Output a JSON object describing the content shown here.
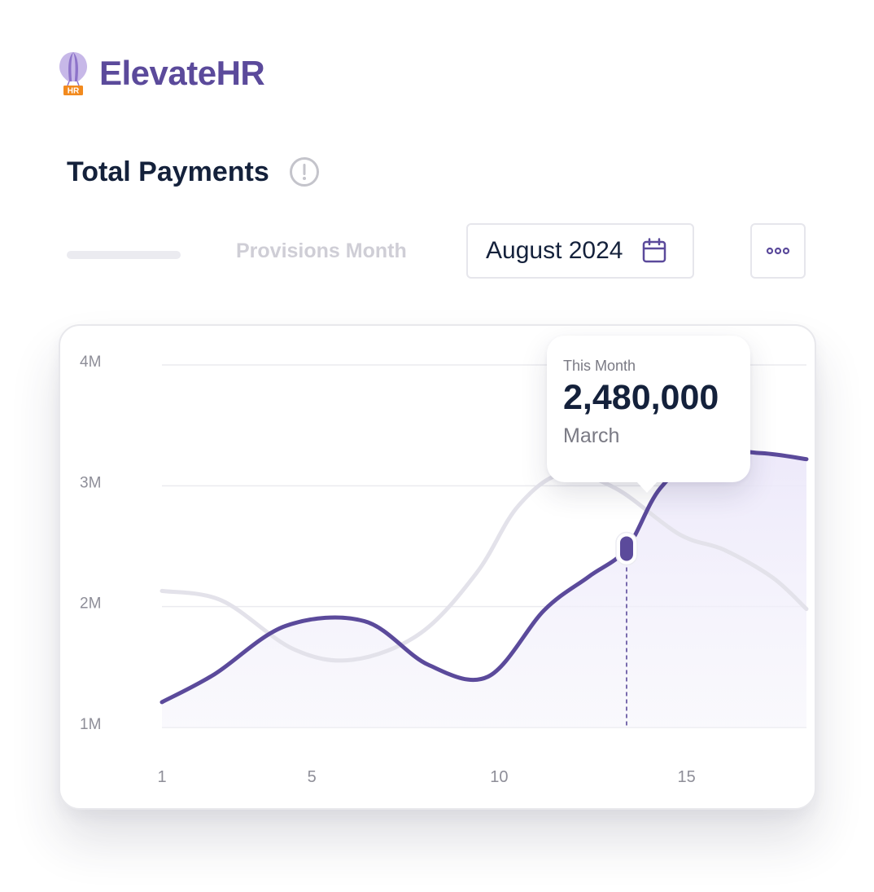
{
  "brand": {
    "name": "ElevateHR",
    "logo_badge": "HR",
    "logo_icon": "hot-air-balloon-icon"
  },
  "header": {
    "title": "Total Payments",
    "info_icon": "info-icon"
  },
  "controls": {
    "provisions_label": "Provisions Month",
    "month_value": "August 2024",
    "calendar_icon": "calendar-icon",
    "more_icon": "more-icon"
  },
  "tooltip": {
    "label": "This Month",
    "value": "2,480,000",
    "period": "March"
  },
  "colors": {
    "brand": "#5b4a9b",
    "primary_line": "#5b4a9b",
    "secondary_line": "#e3e2ea",
    "logo_badge": "#f28a1e"
  },
  "chart_data": {
    "type": "line",
    "title": "Total Payments",
    "x_ticks": [
      1,
      5,
      10,
      15
    ],
    "y_ticks": [
      1,
      2,
      3,
      4
    ],
    "y_tick_labels": [
      "1M",
      "2M",
      "3M",
      "4M"
    ],
    "xlim": [
      1,
      18.2
    ],
    "ylim": [
      1,
      4
    ],
    "y_unit": "M",
    "grid": true,
    "series": [
      {
        "role": "primary",
        "color": "#5b4a9b",
        "area_fill": true,
        "x": [
          1,
          2.4,
          4.3,
          6.4,
          8.1,
          9.7,
          11.2,
          12.4,
          13.4,
          14.3,
          15.5,
          17.0,
          18.2
        ],
        "y": [
          1.21,
          1.44,
          1.84,
          1.88,
          1.52,
          1.42,
          1.97,
          2.25,
          2.48,
          2.98,
          3.27,
          3.27,
          3.22
        ]
      },
      {
        "role": "comparison",
        "color": "#e3e2ea",
        "area_fill": false,
        "x": [
          1,
          2.6,
          4.5,
          6.1,
          7.9,
          9.4,
          10.5,
          11.7,
          13.1,
          14.8,
          16.0,
          17.3,
          18.2
        ],
        "y": [
          2.13,
          2.05,
          1.65,
          1.56,
          1.78,
          2.28,
          2.83,
          3.1,
          2.98,
          2.6,
          2.47,
          2.24,
          1.98
        ]
      }
    ],
    "highlight": {
      "x": 13.4,
      "y": 2.48
    }
  }
}
